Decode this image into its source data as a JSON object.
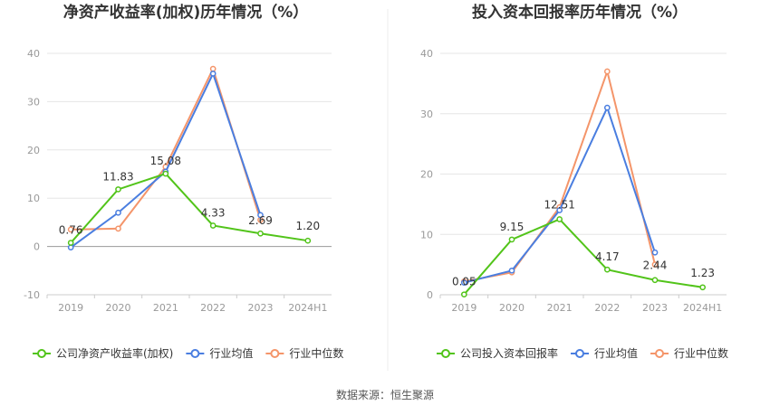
{
  "chart_data": [
    {
      "type": "line",
      "title": "净资产收益率(加权)历年情况（%）",
      "categories": [
        "2019",
        "2020",
        "2021",
        "2022",
        "2023",
        "2024H1"
      ],
      "ylim": [
        -10,
        40
      ],
      "yticks": [
        "40",
        "30",
        "20",
        "10",
        "0",
        "-10"
      ],
      "series": [
        {
          "name": "公司净资产收益率(加权)",
          "color": "#52c41a",
          "values": [
            0.76,
            11.83,
            15.08,
            4.33,
            2.69,
            1.2
          ],
          "labels": [
            "0.76",
            "11.83",
            "15.08",
            "4.33",
            "2.69",
            "1.20"
          ]
        },
        {
          "name": "行业均值",
          "color": "#4a7ee0",
          "values": [
            -0.2,
            7.0,
            15.5,
            35.8,
            6.5,
            null
          ]
        },
        {
          "name": "行业中位数",
          "color": "#f4956a",
          "values": [
            3.5,
            3.7,
            16.5,
            36.8,
            5.5,
            null
          ]
        }
      ]
    },
    {
      "type": "line",
      "title": "投入资本回报率历年情况（%）",
      "categories": [
        "2019",
        "2020",
        "2021",
        "2022",
        "2023",
        "2024H1"
      ],
      "ylim": [
        0,
        40
      ],
      "yticks": [
        "40",
        "30",
        "20",
        "10",
        "0"
      ],
      "series": [
        {
          "name": "公司投入资本回报率",
          "color": "#52c41a",
          "values": [
            0.05,
            9.15,
            12.51,
            4.17,
            2.44,
            1.23
          ],
          "labels": [
            "0.05",
            "9.15",
            "12.51",
            "4.17",
            "2.44",
            "1.23"
          ]
        },
        {
          "name": "行业均值",
          "color": "#4a7ee0",
          "values": [
            2.0,
            4.0,
            14.0,
            31.0,
            7.0,
            null
          ]
        },
        {
          "name": "行业中位数",
          "color": "#f4956a",
          "values": [
            2.2,
            3.7,
            14.5,
            37.0,
            5.0,
            null
          ]
        }
      ]
    }
  ],
  "source": "数据来源：恒生聚源"
}
